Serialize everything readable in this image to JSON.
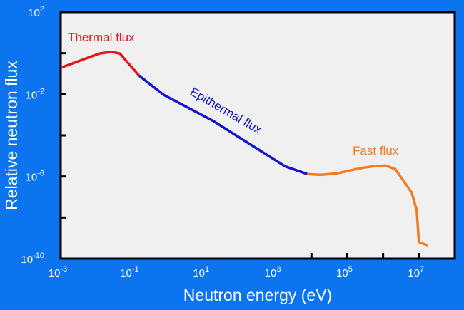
{
  "colors": {
    "background": "#0b74ee",
    "plot_bg": "#f0f0f0",
    "thermal": "#e8141c",
    "epithermal": "#1414c8",
    "fast": "#f47a20"
  },
  "chart_data": {
    "type": "line",
    "title": "",
    "xlabel": "Neutron energy (eV)",
    "ylabel": "Relative neutron flux",
    "xscale": "log",
    "yscale": "log",
    "xlim_log10": [
      -3,
      8
    ],
    "ylim_log10": [
      -10,
      2
    ],
    "x_tick_labels": [
      {
        "base": "10",
        "exp": "-3",
        "log": -3
      },
      {
        "base": "10",
        "exp": "-1",
        "log": -1
      },
      {
        "base": "10",
        "exp": "1",
        "log": 1
      },
      {
        "base": "10",
        "exp": "3",
        "log": 3
      },
      {
        "base": "10",
        "exp": "5",
        "log": 5
      },
      {
        "base": "10",
        "exp": "7",
        "log": 7
      }
    ],
    "y_tick_labels": [
      {
        "base": "10",
        "exp": "2",
        "log": 2
      },
      {
        "base": "10",
        "exp": "-2",
        "log": -2
      },
      {
        "base": "10",
        "exp": "-6",
        "log": -6
      },
      {
        "base": "10",
        "exp": "-10",
        "log": -10
      }
    ],
    "x_minor_ticks_log": [
      4,
      5,
      6,
      7
    ],
    "y_minor_ticks_log": [
      0,
      -2,
      -4,
      -6,
      -8
    ],
    "series": [
      {
        "name": "Thermal flux",
        "color_key": "thermal",
        "points_log10": [
          [
            -3,
            -0.71
          ],
          [
            -1.91,
            -0.01
          ],
          [
            -1.6,
            0.06
          ],
          [
            -1.35,
            -0.01
          ],
          [
            -0.81,
            -1.09
          ]
        ]
      },
      {
        "name": "Epithermal flux",
        "color_key": "epithermal",
        "points_log10": [
          [
            -0.81,
            -1.09
          ],
          [
            -0.12,
            -2.03
          ],
          [
            1.27,
            -3.31
          ],
          [
            3.26,
            -5.5
          ],
          [
            3.88,
            -5.88
          ]
        ]
      },
      {
        "name": "Fast flux",
        "color_key": "fast",
        "points_log10": [
          [
            3.88,
            -5.88
          ],
          [
            4.26,
            -5.92
          ],
          [
            4.71,
            -5.85
          ],
          [
            5.25,
            -5.64
          ],
          [
            5.45,
            -5.57
          ],
          [
            5.75,
            -5.5
          ],
          [
            6.07,
            -5.47
          ],
          [
            6.34,
            -5.64
          ],
          [
            6.8,
            -6.78
          ],
          [
            6.94,
            -7.65
          ],
          [
            7.0,
            -9.2
          ],
          [
            7.24,
            -9.35
          ]
        ]
      }
    ],
    "annotations": [
      "Thermal flux",
      "Epithermal flux",
      "Fast flux"
    ]
  }
}
